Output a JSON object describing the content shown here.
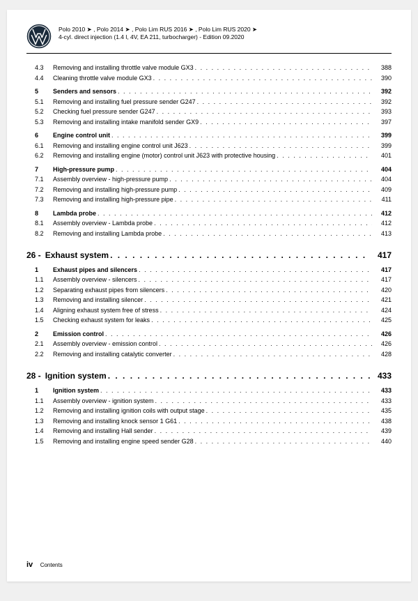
{
  "header": {
    "line1": "Polo 2010 ➤ , Polo 2014 ➤ , Polo Lim RUS 2016 ➤ , Polo Lim RUS 2020 ➤",
    "line2": "4-cyl. direct injection (1.4 l, 4V, EA 211, turbocharger) - Edition 09.2020"
  },
  "sections": [
    {
      "type": "group",
      "rows": [
        {
          "num": "4.3",
          "title": "Removing and installing throttle valve module GX3",
          "page": "388",
          "bold": false
        },
        {
          "num": "4.4",
          "title": "Cleaning throttle valve module GX3",
          "page": "390",
          "bold": false
        }
      ]
    },
    {
      "type": "group",
      "rows": [
        {
          "num": "5",
          "title": "Senders and sensors",
          "page": "392",
          "bold": true
        },
        {
          "num": "5.1",
          "title": "Removing and installing fuel pressure sender G247",
          "page": "392",
          "bold": false
        },
        {
          "num": "5.2",
          "title": "Checking fuel pressure sender G247",
          "page": "393",
          "bold": false
        },
        {
          "num": "5.3",
          "title": "Removing and installing intake manifold sender GX9",
          "page": "397",
          "bold": false
        }
      ]
    },
    {
      "type": "group",
      "rows": [
        {
          "num": "6",
          "title": "Engine control unit",
          "page": "399",
          "bold": true
        },
        {
          "num": "6.1",
          "title": "Removing and installing engine control unit J623",
          "page": "399",
          "bold": false
        },
        {
          "num": "6.2",
          "title": "Removing and installing engine (motor) control unit J623 with protective housing",
          "page": "401",
          "bold": false
        }
      ]
    },
    {
      "type": "group",
      "rows": [
        {
          "num": "7",
          "title": "High-pressure pump",
          "page": "404",
          "bold": true
        },
        {
          "num": "7.1",
          "title": "Assembly overview - high-pressure pump",
          "page": "404",
          "bold": false
        },
        {
          "num": "7.2",
          "title": "Removing and installing high-pressure pump",
          "page": "409",
          "bold": false
        },
        {
          "num": "7.3",
          "title": "Removing and installing high-pressure pipe",
          "page": "411",
          "bold": false
        }
      ]
    },
    {
      "type": "group",
      "rows": [
        {
          "num": "8",
          "title": "Lambda probe",
          "page": "412",
          "bold": true
        },
        {
          "num": "8.1",
          "title": "Assembly overview - Lambda probe",
          "page": "412",
          "bold": false
        },
        {
          "num": "8.2",
          "title": "Removing and installing Lambda probe",
          "page": "413",
          "bold": false
        }
      ]
    },
    {
      "type": "chapter",
      "num": "26 -",
      "title": "Exhaust system",
      "page": "417"
    },
    {
      "type": "group",
      "rows": [
        {
          "num": "1",
          "title": "Exhaust pipes and silencers",
          "page": "417",
          "bold": true
        },
        {
          "num": "1.1",
          "title": "Assembly overview - silencers",
          "page": "417",
          "bold": false
        },
        {
          "num": "1.2",
          "title": "Separating exhaust pipes from silencers",
          "page": "420",
          "bold": false
        },
        {
          "num": "1.3",
          "title": "Removing and installing silencer",
          "page": "421",
          "bold": false
        },
        {
          "num": "1.4",
          "title": "Aligning exhaust system free of stress",
          "page": "424",
          "bold": false
        },
        {
          "num": "1.5",
          "title": "Checking exhaust system for leaks",
          "page": "425",
          "bold": false
        }
      ]
    },
    {
      "type": "group",
      "rows": [
        {
          "num": "2",
          "title": "Emission control",
          "page": "426",
          "bold": true
        },
        {
          "num": "2.1",
          "title": "Assembly overview - emission control",
          "page": "426",
          "bold": false
        },
        {
          "num": "2.2",
          "title": "Removing and installing catalytic converter",
          "page": "428",
          "bold": false
        }
      ]
    },
    {
      "type": "chapter",
      "num": "28 -",
      "title": "Ignition system",
      "page": "433"
    },
    {
      "type": "group",
      "rows": [
        {
          "num": "1",
          "title": "Ignition system",
          "page": "433",
          "bold": true
        },
        {
          "num": "1.1",
          "title": "Assembly overview - ignition system",
          "page": "433",
          "bold": false
        },
        {
          "num": "1.2",
          "title": "Removing and installing ignition coils with output stage",
          "page": "435",
          "bold": false
        },
        {
          "num": "1.3",
          "title": "Removing and installing knock sensor 1 G61",
          "page": "438",
          "bold": false
        },
        {
          "num": "1.4",
          "title": "Removing and installing Hall sender",
          "page": "439",
          "bold": false
        },
        {
          "num": "1.5",
          "title": "Removing and installing engine speed sender G28",
          "page": "440",
          "bold": false
        }
      ]
    }
  ],
  "footer": {
    "pageNum": "iv",
    "label": "Contents"
  }
}
